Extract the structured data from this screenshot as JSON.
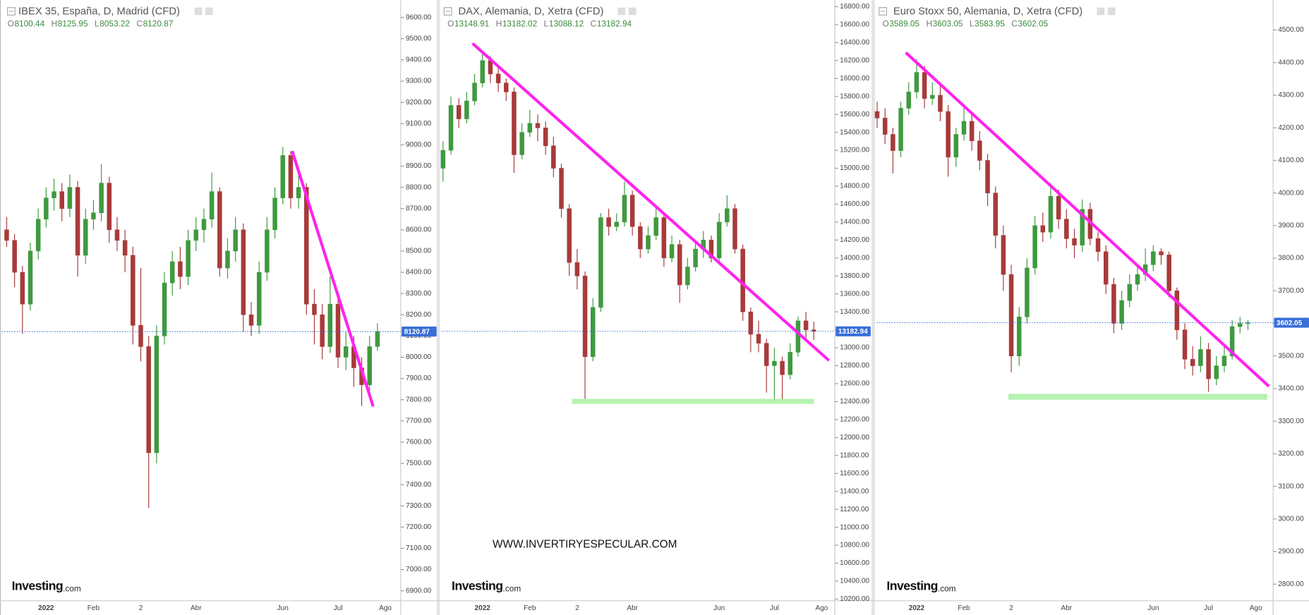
{
  "chart_data": [
    {
      "type": "candlestick",
      "title": "IBEX 35, España, D, Madrid (CFD)",
      "ohlc": [
        {
          "label": "O",
          "value": 8100.44
        },
        {
          "label": "H",
          "value": 8125.95
        },
        {
          "label": "L",
          "value": 8053.22
        },
        {
          "label": "C",
          "value": 8120.87
        }
      ],
      "watermark": {
        "name": "Investing",
        "suffix": ".com"
      },
      "up_color": "#3f9a3f",
      "down_color": "#a83a3a",
      "categories": [
        null,
        null,
        null,
        null,
        null,
        "2022",
        null,
        null,
        null,
        null,
        null,
        "Feb",
        null,
        null,
        null,
        null,
        null,
        "2",
        null,
        null,
        null,
        null,
        null,
        null,
        "Abr",
        null,
        null,
        null,
        null,
        null,
        null,
        null,
        null,
        null,
        null,
        "Jun",
        null,
        null,
        null,
        null,
        null,
        null,
        "Jul",
        null,
        null,
        null,
        null,
        null,
        "Ago"
      ],
      "open": [
        8600,
        8550,
        8400,
        8250,
        8500,
        8650,
        8750,
        8780,
        8700,
        8800,
        8480,
        8650,
        8680,
        8820,
        8600,
        8550,
        8480,
        8150,
        8050,
        7550,
        8100,
        8350,
        8450,
        8380,
        8550,
        8600,
        8650,
        8780,
        8420,
        8500,
        8600,
        8200,
        8150,
        8400,
        8600,
        8750,
        8950,
        8750,
        8800,
        8250,
        8200,
        8050,
        8250,
        8000,
        8050,
        7950,
        7870,
        8050,
        null
      ],
      "high": [
        8660,
        8580,
        8430,
        8540,
        8700,
        8800,
        8840,
        8820,
        8860,
        8830,
        8700,
        8740,
        8910,
        8850,
        8660,
        8600,
        8520,
        8420,
        8100,
        8150,
        8400,
        8500,
        8520,
        8600,
        8660,
        8700,
        8870,
        8800,
        8560,
        8660,
        8630,
        8260,
        8450,
        8660,
        8800,
        8990,
        8970,
        8860,
        8820,
        8320,
        8250,
        8380,
        8280,
        8120,
        8100,
        8000,
        8100,
        8160,
        null
      ],
      "low": [
        8520,
        8330,
        8110,
        8220,
        8460,
        8610,
        8690,
        8640,
        8660,
        8380,
        8440,
        8600,
        8640,
        8540,
        8500,
        8400,
        8060,
        7980,
        7290,
        7500,
        8060,
        8290,
        8320,
        8340,
        8500,
        8540,
        8610,
        8380,
        8370,
        8450,
        8120,
        8100,
        8110,
        8360,
        8560,
        8720,
        8700,
        8700,
        8200,
        8060,
        7990,
        8020,
        7950,
        7940,
        7860,
        7770,
        7840,
        8030,
        null
      ],
      "close": [
        8550,
        8400,
        8250,
        8500,
        8650,
        8750,
        8780,
        8700,
        8800,
        8480,
        8650,
        8680,
        8820,
        8600,
        8550,
        8480,
        8150,
        8050,
        7550,
        8100,
        8350,
        8450,
        8380,
        8550,
        8600,
        8650,
        8780,
        8420,
        8500,
        8600,
        8200,
        8150,
        8400,
        8600,
        8750,
        8950,
        8750,
        8800,
        8250,
        8200,
        8050,
        8250,
        8000,
        8050,
        7950,
        7870,
        8050,
        8121,
        null
      ],
      "ylim": [
        6853,
        9682
      ],
      "yticks": [
        {
          "value": 6900,
          "label": "6900.00"
        },
        {
          "value": 7000,
          "label": "7000.00"
        },
        {
          "value": 7100,
          "label": "7100.00"
        },
        {
          "value": 7200,
          "label": "7200.00"
        },
        {
          "value": 7300,
          "label": "7300.00"
        },
        {
          "value": 7400,
          "label": "7400.00"
        },
        {
          "value": 7500,
          "label": "7500.00"
        },
        {
          "value": 7600,
          "label": "7600.00"
        },
        {
          "value": 7700,
          "label": "7700.00"
        },
        {
          "value": 7800,
          "label": "7800.00"
        },
        {
          "value": 7900,
          "label": "7900.00"
        },
        {
          "value": 8000,
          "label": "8000.00"
        },
        {
          "value": 8100,
          "label": "8100.00"
        },
        {
          "value": 8200,
          "label": "8200.00"
        },
        {
          "value": 8300,
          "label": "8300.00"
        },
        {
          "value": 8400,
          "label": "8400.00"
        },
        {
          "value": 8500,
          "label": "8500.00"
        },
        {
          "value": 8600,
          "label": "8600.00"
        },
        {
          "value": 8700,
          "label": "8700.00"
        },
        {
          "value": 8800,
          "label": "8800.00"
        },
        {
          "value": 8900,
          "label": "8900.00"
        },
        {
          "value": 9000,
          "label": "9000.00"
        },
        {
          "value": 9100,
          "label": "9100.00"
        },
        {
          "value": 9200,
          "label": "9200.00"
        },
        {
          "value": 9300,
          "label": "9300.00"
        },
        {
          "value": 9400,
          "label": "9400.00"
        },
        {
          "value": 9500,
          "label": "9500.00"
        },
        {
          "value": 9600,
          "label": "9600.00"
        }
      ]
    },
    {
      "type": "candlestick",
      "title": "DAX, Alemania, D, Xetra (CFD)",
      "ohlc": [
        {
          "label": "O",
          "value": 13148.91
        },
        {
          "label": "H",
          "value": 13182.02
        },
        {
          "label": "L",
          "value": 13088.12
        },
        {
          "label": "C",
          "value": 13182.94
        }
      ],
      "watermark": {
        "name": "Investing",
        "suffix": ".com"
      },
      "annotation": "WWW.INVERTIRYESPECULAR.COM",
      "up_color": "#3f9a3f",
      "down_color": "#a83a3a",
      "categories": [
        null,
        null,
        null,
        null,
        null,
        "2022",
        null,
        null,
        null,
        null,
        null,
        "Feb",
        null,
        null,
        null,
        null,
        null,
        "2",
        null,
        null,
        null,
        null,
        null,
        null,
        "Abr",
        null,
        null,
        null,
        null,
        null,
        null,
        null,
        null,
        null,
        null,
        "Jun",
        null,
        null,
        null,
        null,
        null,
        null,
        "Jul",
        null,
        null,
        null,
        null,
        null,
        "Ago"
      ],
      "open": [
        15000,
        15200,
        15700,
        15550,
        15750,
        15950,
        16200,
        16050,
        15950,
        15850,
        15150,
        15400,
        15500,
        15450,
        15250,
        15000,
        14550,
        13950,
        13800,
        12900,
        13450,
        14450,
        14350,
        14400,
        14700,
        14350,
        14100,
        14250,
        14450,
        14000,
        14150,
        13700,
        13900,
        14100,
        14200,
        14000,
        14400,
        14550,
        14100,
        13400,
        13150,
        13050,
        12800,
        12850,
        12700,
        12950,
        13300,
        13200,
        null
      ],
      "high": [
        15300,
        15800,
        15780,
        15850,
        16050,
        16290,
        16250,
        16120,
        16000,
        15900,
        15500,
        15650,
        15600,
        15520,
        15350,
        15050,
        14600,
        14100,
        13850,
        13550,
        14500,
        14550,
        14500,
        14850,
        14750,
        14400,
        14350,
        14550,
        14480,
        14250,
        14200,
        14000,
        14200,
        14300,
        14250,
        14500,
        14700,
        14600,
        14150,
        13450,
        13300,
        13100,
        13000,
        12900,
        13050,
        13350,
        13400,
        13290,
        null
      ],
      "low": [
        14850,
        15150,
        15450,
        15500,
        15700,
        15900,
        15950,
        15850,
        15750,
        14950,
        15100,
        15350,
        15300,
        15150,
        14900,
        14450,
        13800,
        13650,
        12430,
        12850,
        13400,
        14250,
        14300,
        14350,
        14250,
        14000,
        14050,
        14200,
        13900,
        13950,
        13500,
        13650,
        13850,
        14000,
        13950,
        13950,
        14350,
        14050,
        13300,
        12950,
        12950,
        12500,
        12400,
        12420,
        12650,
        12900,
        13100,
        13090,
        null
      ],
      "close": [
        15200,
        15700,
        15550,
        15750,
        15950,
        16200,
        16050,
        15950,
        15850,
        15150,
        15400,
        15500,
        15450,
        15250,
        15000,
        14550,
        13950,
        13800,
        12900,
        13450,
        14450,
        14350,
        14400,
        14700,
        14350,
        14100,
        14250,
        14450,
        14000,
        14150,
        13700,
        13900,
        14100,
        14200,
        14000,
        14400,
        14550,
        14100,
        13400,
        13150,
        13050,
        12800,
        12850,
        12700,
        12950,
        13300,
        13200,
        13183,
        null
      ],
      "ylim": [
        10181,
        16874
      ],
      "yticks": [
        {
          "value": 10200,
          "label": "10200.00"
        },
        {
          "value": 10400,
          "label": "10400.00"
        },
        {
          "value": 10600,
          "label": "10600.00"
        },
        {
          "value": 10800,
          "label": "10800.00"
        },
        {
          "value": 11000,
          "label": "11000.00"
        },
        {
          "value": 11200,
          "label": "11200.00"
        },
        {
          "value": 11400,
          "label": "11400.00"
        },
        {
          "value": 11600,
          "label": "11600.00"
        },
        {
          "value": 11800,
          "label": "11800.00"
        },
        {
          "value": 12000,
          "label": "12000.00"
        },
        {
          "value": 12200,
          "label": "12200.00"
        },
        {
          "value": 12400,
          "label": "12400.00"
        },
        {
          "value": 12600,
          "label": "12600.00"
        },
        {
          "value": 12800,
          "label": "12800.00"
        },
        {
          "value": 13000,
          "label": "13000.00"
        },
        {
          "value": 13200,
          "label": "13200.00"
        },
        {
          "value": 13400,
          "label": "13400.00"
        },
        {
          "value": 13600,
          "label": "13600.00"
        },
        {
          "value": 13800,
          "label": "13800.00"
        },
        {
          "value": 14000,
          "label": "14000.00"
        },
        {
          "value": 14200,
          "label": "14200.00"
        },
        {
          "value": 14400,
          "label": "14400.00"
        },
        {
          "value": 14600,
          "label": "14600.00"
        },
        {
          "value": 14800,
          "label": "14800.00"
        },
        {
          "value": 15000,
          "label": "15000.00"
        },
        {
          "value": 15200,
          "label": "15200.00"
        },
        {
          "value": 15400,
          "label": "15400.00"
        },
        {
          "value": 15600,
          "label": "15600.00"
        },
        {
          "value": 15800,
          "label": "15800.00"
        },
        {
          "value": 16000,
          "label": "16000.00"
        },
        {
          "value": 16200,
          "label": "16200.00"
        },
        {
          "value": 16400,
          "label": "16400.00"
        },
        {
          "value": 16600,
          "label": "16600.00"
        },
        {
          "value": 16800,
          "label": "16800.00"
        }
      ]
    },
    {
      "type": "candlestick",
      "title": "Euro Stoxx 50, Alemania, D, Xetra (CFD)",
      "ohlc": [
        {
          "label": "O",
          "value": 3589.05
        },
        {
          "label": "H",
          "value": 3603.05
        },
        {
          "label": "L",
          "value": 3583.95
        },
        {
          "label": "C",
          "value": 3602.05
        }
      ],
      "watermark": {
        "name": "Investing",
        "suffix": ".com"
      },
      "up_color": "#3f9a3f",
      "down_color": "#a83a3a",
      "categories": [
        null,
        null,
        null,
        null,
        null,
        "2022",
        null,
        null,
        null,
        null,
        null,
        "Feb",
        null,
        null,
        null,
        null,
        null,
        "2",
        null,
        null,
        null,
        null,
        null,
        null,
        "Abr",
        null,
        null,
        null,
        null,
        null,
        null,
        null,
        null,
        null,
        null,
        "Jun",
        null,
        null,
        null,
        null,
        null,
        null,
        "Jul",
        null,
        null,
        null,
        null,
        null,
        "Ago"
      ],
      "open": [
        4250,
        4230,
        4180,
        4130,
        4260,
        4310,
        4370,
        4290,
        4300,
        4250,
        4110,
        4180,
        4220,
        4160,
        4100,
        4000,
        3870,
        3750,
        3500,
        3620,
        3770,
        3900,
        3880,
        3990,
        3920,
        3860,
        3840,
        3950,
        3860,
        3820,
        3720,
        3600,
        3670,
        3720,
        3750,
        3780,
        3820,
        3810,
        3700,
        3580,
        3490,
        3470,
        3520,
        3430,
        3470,
        3500,
        3590,
        3600,
        null
      ],
      "high": [
        4280,
        4260,
        4200,
        4280,
        4340,
        4410,
        4390,
        4340,
        4330,
        4270,
        4200,
        4260,
        4240,
        4190,
        4120,
        4020,
        3900,
        3780,
        3650,
        3800,
        3930,
        3940,
        4030,
        4010,
        3950,
        3890,
        3980,
        3970,
        3880,
        3840,
        3740,
        3700,
        3750,
        3780,
        3830,
        3840,
        3830,
        3820,
        3710,
        3600,
        3530,
        3560,
        3540,
        3500,
        3530,
        3610,
        3620,
        3610,
        null
      ],
      "low": [
        4200,
        4150,
        4060,
        4110,
        4240,
        4290,
        4260,
        4270,
        4220,
        4050,
        4080,
        4160,
        4130,
        4070,
        3960,
        3830,
        3700,
        3450,
        3470,
        3600,
        3750,
        3850,
        3860,
        3890,
        3830,
        3800,
        3820,
        3840,
        3790,
        3690,
        3570,
        3580,
        3650,
        3700,
        3730,
        3760,
        3780,
        3680,
        3550,
        3460,
        3440,
        3450,
        3390,
        3410,
        3450,
        3490,
        3570,
        3580,
        null
      ],
      "close": [
        4230,
        4180,
        4130,
        4260,
        4310,
        4370,
        4290,
        4300,
        4250,
        4110,
        4180,
        4220,
        4160,
        4100,
        4000,
        3870,
        3750,
        3500,
        3620,
        3770,
        3900,
        3880,
        3990,
        3920,
        3860,
        3840,
        3950,
        3860,
        3820,
        3720,
        3600,
        3670,
        3720,
        3750,
        3780,
        3820,
        3810,
        3700,
        3580,
        3490,
        3470,
        3520,
        3430,
        3470,
        3500,
        3590,
        3600,
        3602,
        null
      ],
      "ylim": [
        2749,
        4592
      ],
      "yticks": [
        {
          "value": 2800,
          "label": "2800.00"
        },
        {
          "value": 2900,
          "label": "2900.00"
        },
        {
          "value": 3000,
          "label": "3000.00"
        },
        {
          "value": 3100,
          "label": "3100.00"
        },
        {
          "value": 3200,
          "label": "3200.00"
        },
        {
          "value": 3300,
          "label": "3300.00"
        },
        {
          "value": 3400,
          "label": "3400.00"
        },
        {
          "value": 3500,
          "label": "3500.00"
        },
        {
          "value": 3600,
          "label": "3600.00"
        },
        {
          "value": 3700,
          "label": "3700.00"
        },
        {
          "value": 3800,
          "label": "3800.00"
        },
        {
          "value": 3900,
          "label": "3900.00"
        },
        {
          "value": 4000,
          "label": "4000.00"
        },
        {
          "value": 4100,
          "label": "4100.00"
        },
        {
          "value": 4200,
          "label": "4200.00"
        },
        {
          "value": 4300,
          "label": "4300.00"
        },
        {
          "value": 4400,
          "label": "4400.00"
        },
        {
          "value": 4500,
          "label": "4500.00"
        }
      ]
    }
  ]
}
